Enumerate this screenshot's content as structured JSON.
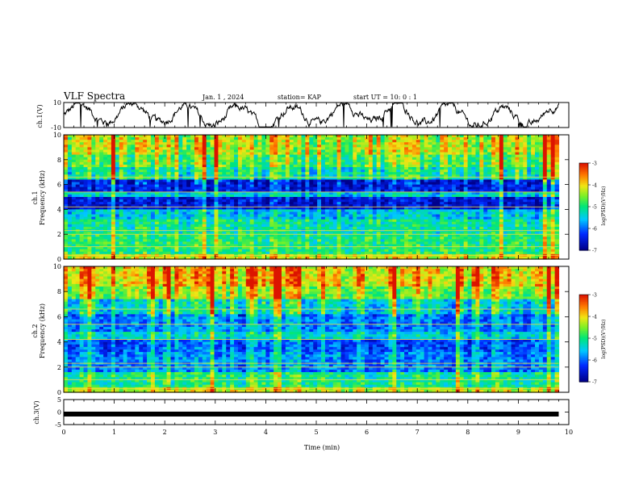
{
  "header": {
    "title": "VLF Spectra",
    "date": "Jan. 1 , 2024",
    "station": "station= KAP",
    "start": "start UT = 10: 0 : 1"
  },
  "chart_data": [
    {
      "type": "line",
      "name": "ch1-waveform",
      "ylabel": "ch.1(V)",
      "ylim": [
        -10,
        10
      ],
      "yticks": [
        10,
        -10
      ],
      "xlim": [
        0,
        10
      ],
      "description_seed": 7
    },
    {
      "type": "heatmap",
      "name": "ch1-spectrogram",
      "ylabel": "ch.1",
      "ylabel2": "Frequency (kHz)",
      "ylim": [
        0,
        10
      ],
      "yticks": [
        0,
        2,
        4,
        6,
        8,
        10
      ],
      "xlim": [
        0,
        9.8
      ],
      "colorbar": {
        "label": "log(PSD)(V²/Hz)",
        "range": [
          -7,
          -3
        ],
        "ticks": [
          -3,
          -4,
          -5,
          -6,
          -7
        ]
      }
    },
    {
      "type": "heatmap",
      "name": "ch2-spectrogram",
      "ylabel": "ch.2",
      "ylabel2": "Frequency (kHz)",
      "ylim": [
        0,
        10
      ],
      "yticks": [
        0,
        2,
        4,
        6,
        8,
        10
      ],
      "xlim": [
        0,
        9.8
      ],
      "colorbar": {
        "label": "log(PSD)(V²/Hz)",
        "range": [
          -7,
          -3
        ],
        "ticks": [
          -3,
          -4,
          -5,
          -6,
          -7
        ]
      }
    },
    {
      "type": "line",
      "name": "ch3-waveform",
      "ylabel": "ch.3(V)",
      "ylim": [
        -5,
        5
      ],
      "yticks": [
        5,
        0,
        -5
      ],
      "value": -0.8,
      "xlim": [
        0,
        9.8
      ]
    }
  ],
  "xaxis": {
    "label": "Time (min)",
    "range": [
      0,
      10
    ],
    "ticks": [
      0,
      1,
      2,
      3,
      4,
      5,
      6,
      7,
      8,
      9,
      10
    ]
  }
}
